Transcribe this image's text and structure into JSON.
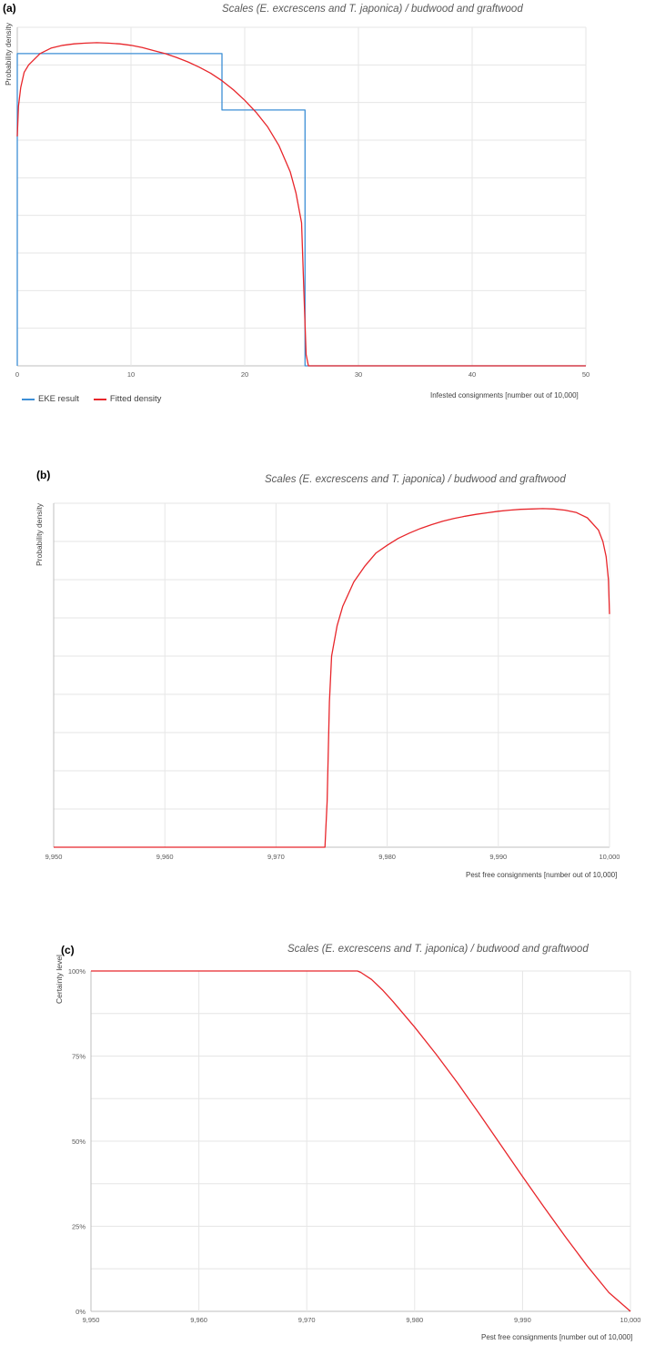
{
  "panels": {
    "a": {
      "label": "(a)",
      "title": "Scales (E. excrescens and T. japonica) / budwood and graftwood",
      "ylabel": "Probability density",
      "xlabel": "Infested consignments [number out of 10,000]",
      "legend": [
        "EKE result",
        "Fitted density"
      ]
    },
    "b": {
      "label": "(b)",
      "title": "Scales (E. excrescens and T. japonica) / budwood and graftwood",
      "ylabel": "Probability density",
      "xlabel": "Pest free consignments [number out of 10,000]"
    },
    "c": {
      "label": "(c)",
      "title": "Scales (E. excrescens and T. japonica) / budwood and graftwood",
      "ylabel": "Certainty level",
      "xlabel": "Pest free consignments [number out of 10,000]"
    }
  },
  "colors": {
    "eke": "#3d8fd6",
    "fitted": "#e8262b",
    "grid": "#e6e6e6",
    "axis": "#bfbfbf"
  },
  "chart_data": [
    {
      "type": "line",
      "title": "Scales (E. excrescens and T. japonica) / budwood and graftwood",
      "xlabel": "Infested consignments [number out of 10,000]",
      "ylabel": "Probability density",
      "xlim": [
        0,
        50
      ],
      "ylim": [
        0,
        9
      ],
      "xticks": [
        0,
        10,
        20,
        30,
        40,
        50
      ],
      "xtick_labels": [
        "0",
        "10",
        "20",
        "30",
        "40",
        "50"
      ],
      "grid": true,
      "legend": "bottom-left",
      "series": [
        {
          "name": "EKE result",
          "type": "step",
          "x": [
            0,
            0,
            18,
            18,
            25.3,
            25.3,
            50
          ],
          "y": [
            0,
            8.3,
            8.3,
            6.8,
            6.8,
            0,
            0
          ]
        },
        {
          "name": "Fitted density",
          "x": [
            0,
            0.1,
            0.3,
            0.6,
            1,
            2,
            3,
            4,
            5,
            6,
            7,
            8,
            9,
            10,
            11,
            12,
            13,
            14,
            15,
            16,
            17,
            18,
            19,
            20,
            21,
            22,
            23,
            24,
            24.5,
            25,
            25.2,
            25.4,
            25.6,
            26,
            30,
            40,
            50
          ],
          "y": [
            6.1,
            6.9,
            7.4,
            7.8,
            8.0,
            8.3,
            8.45,
            8.52,
            8.56,
            8.58,
            8.59,
            8.58,
            8.56,
            8.52,
            8.46,
            8.38,
            8.3,
            8.2,
            8.08,
            7.94,
            7.78,
            7.58,
            7.34,
            7.06,
            6.74,
            6.36,
            5.86,
            5.16,
            4.6,
            3.8,
            2.0,
            0.3,
            0,
            0,
            0,
            0,
            0
          ]
        }
      ]
    },
    {
      "type": "line",
      "title": "Scales (E. excrescens and T. japonica) / budwood and graftwood",
      "xlabel": "Pest free consignments [number out of 10,000]",
      "ylabel": "Probability density",
      "xlim": [
        9950,
        10000
      ],
      "ylim": [
        0,
        9
      ],
      "xticks": [
        9950,
        9960,
        9970,
        9980,
        9990,
        10000
      ],
      "xtick_labels": [
        "9,950",
        "9,960",
        "9,970",
        "9,980",
        "9,990",
        "10,000"
      ],
      "grid": true,
      "series": [
        {
          "name": "Fitted density",
          "x": [
            9950,
            9974.4,
            9974.6,
            9974.8,
            9975,
            9975.5,
            9976,
            9977,
            9978,
            9979,
            9980,
            9981,
            9982,
            9983,
            9984,
            9985,
            9986,
            9987,
            9988,
            9989,
            9990,
            9991,
            9992,
            9993,
            9994,
            9995,
            9996,
            9997,
            9998,
            9999,
            9999.4,
            9999.7,
            9999.9,
            10000
          ],
          "y": [
            0,
            0,
            1.2,
            3.8,
            5.0,
            5.8,
            6.3,
            6.94,
            7.36,
            7.7,
            7.9,
            8.08,
            8.22,
            8.34,
            8.44,
            8.53,
            8.6,
            8.66,
            8.71,
            8.75,
            8.79,
            8.82,
            8.84,
            8.85,
            8.86,
            8.85,
            8.82,
            8.76,
            8.62,
            8.3,
            8.0,
            7.6,
            7.0,
            6.1
          ]
        }
      ]
    },
    {
      "type": "line",
      "title": "Scales (E. excrescens and T. japonica) / budwood and graftwood",
      "xlabel": "Pest free consignments [number out of 10,000]",
      "ylabel": "Certainty level",
      "xlim": [
        9950,
        10000
      ],
      "ylim": [
        0,
        100
      ],
      "xticks": [
        9950,
        9960,
        9970,
        9980,
        9990,
        10000
      ],
      "xtick_labels": [
        "9,950",
        "9,960",
        "9,970",
        "9,980",
        "9,990",
        "10,000"
      ],
      "yticks": [
        0,
        25,
        50,
        75,
        100
      ],
      "ytick_labels": [
        "0%",
        "25%",
        "50%",
        "75%",
        "100%"
      ],
      "grid": true,
      "series": [
        {
          "name": "Fitted density",
          "x": [
            9950,
            9974.7,
            9975,
            9976,
            9977,
            9978,
            9980,
            9982,
            9984,
            9986,
            9988,
            9990,
            9992,
            9994,
            9996,
            9998,
            10000
          ],
          "y": [
            100,
            100,
            99.6,
            97.5,
            94.5,
            91,
            83.5,
            75.5,
            67,
            58,
            48.8,
            39.6,
            30.6,
            21.8,
            13.3,
            5.5,
            0
          ]
        }
      ]
    }
  ]
}
